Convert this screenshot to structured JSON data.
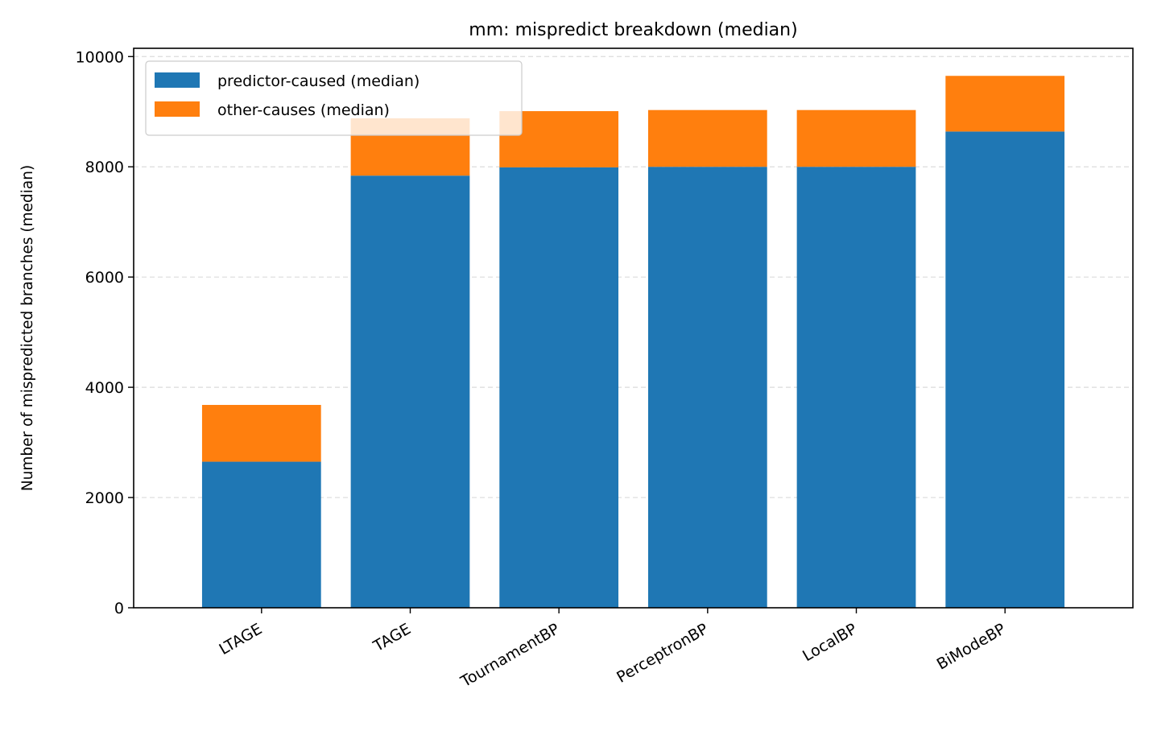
{
  "chart_data": {
    "type": "bar",
    "stacked": true,
    "title": "mm: mispredict breakdown (median)",
    "xlabel": "",
    "ylabel": "Number of mispredicted branches (median)",
    "categories": [
      "LTAGE",
      "TAGE",
      "TournamentBP",
      "PerceptronBP",
      "LocalBP",
      "BiModeBP"
    ],
    "series": [
      {
        "name": "predictor-caused (median)",
        "color": "#1f77b4",
        "values": [
          2650,
          7840,
          7990,
          8000,
          8000,
          8640
        ]
      },
      {
        "name": "other-causes (median)",
        "color": "#ff7f0e",
        "values": [
          1030,
          1040,
          1020,
          1030,
          1030,
          1010
        ]
      }
    ],
    "ylim": [
      0,
      10150
    ],
    "yticks": [
      0,
      2000,
      4000,
      6000,
      8000,
      10000
    ],
    "ytick_labels": [
      "0",
      "2000",
      "4000",
      "6000",
      "8000",
      "10000"
    ],
    "grid": "horizontal dashed",
    "legend_position": "top-left"
  }
}
